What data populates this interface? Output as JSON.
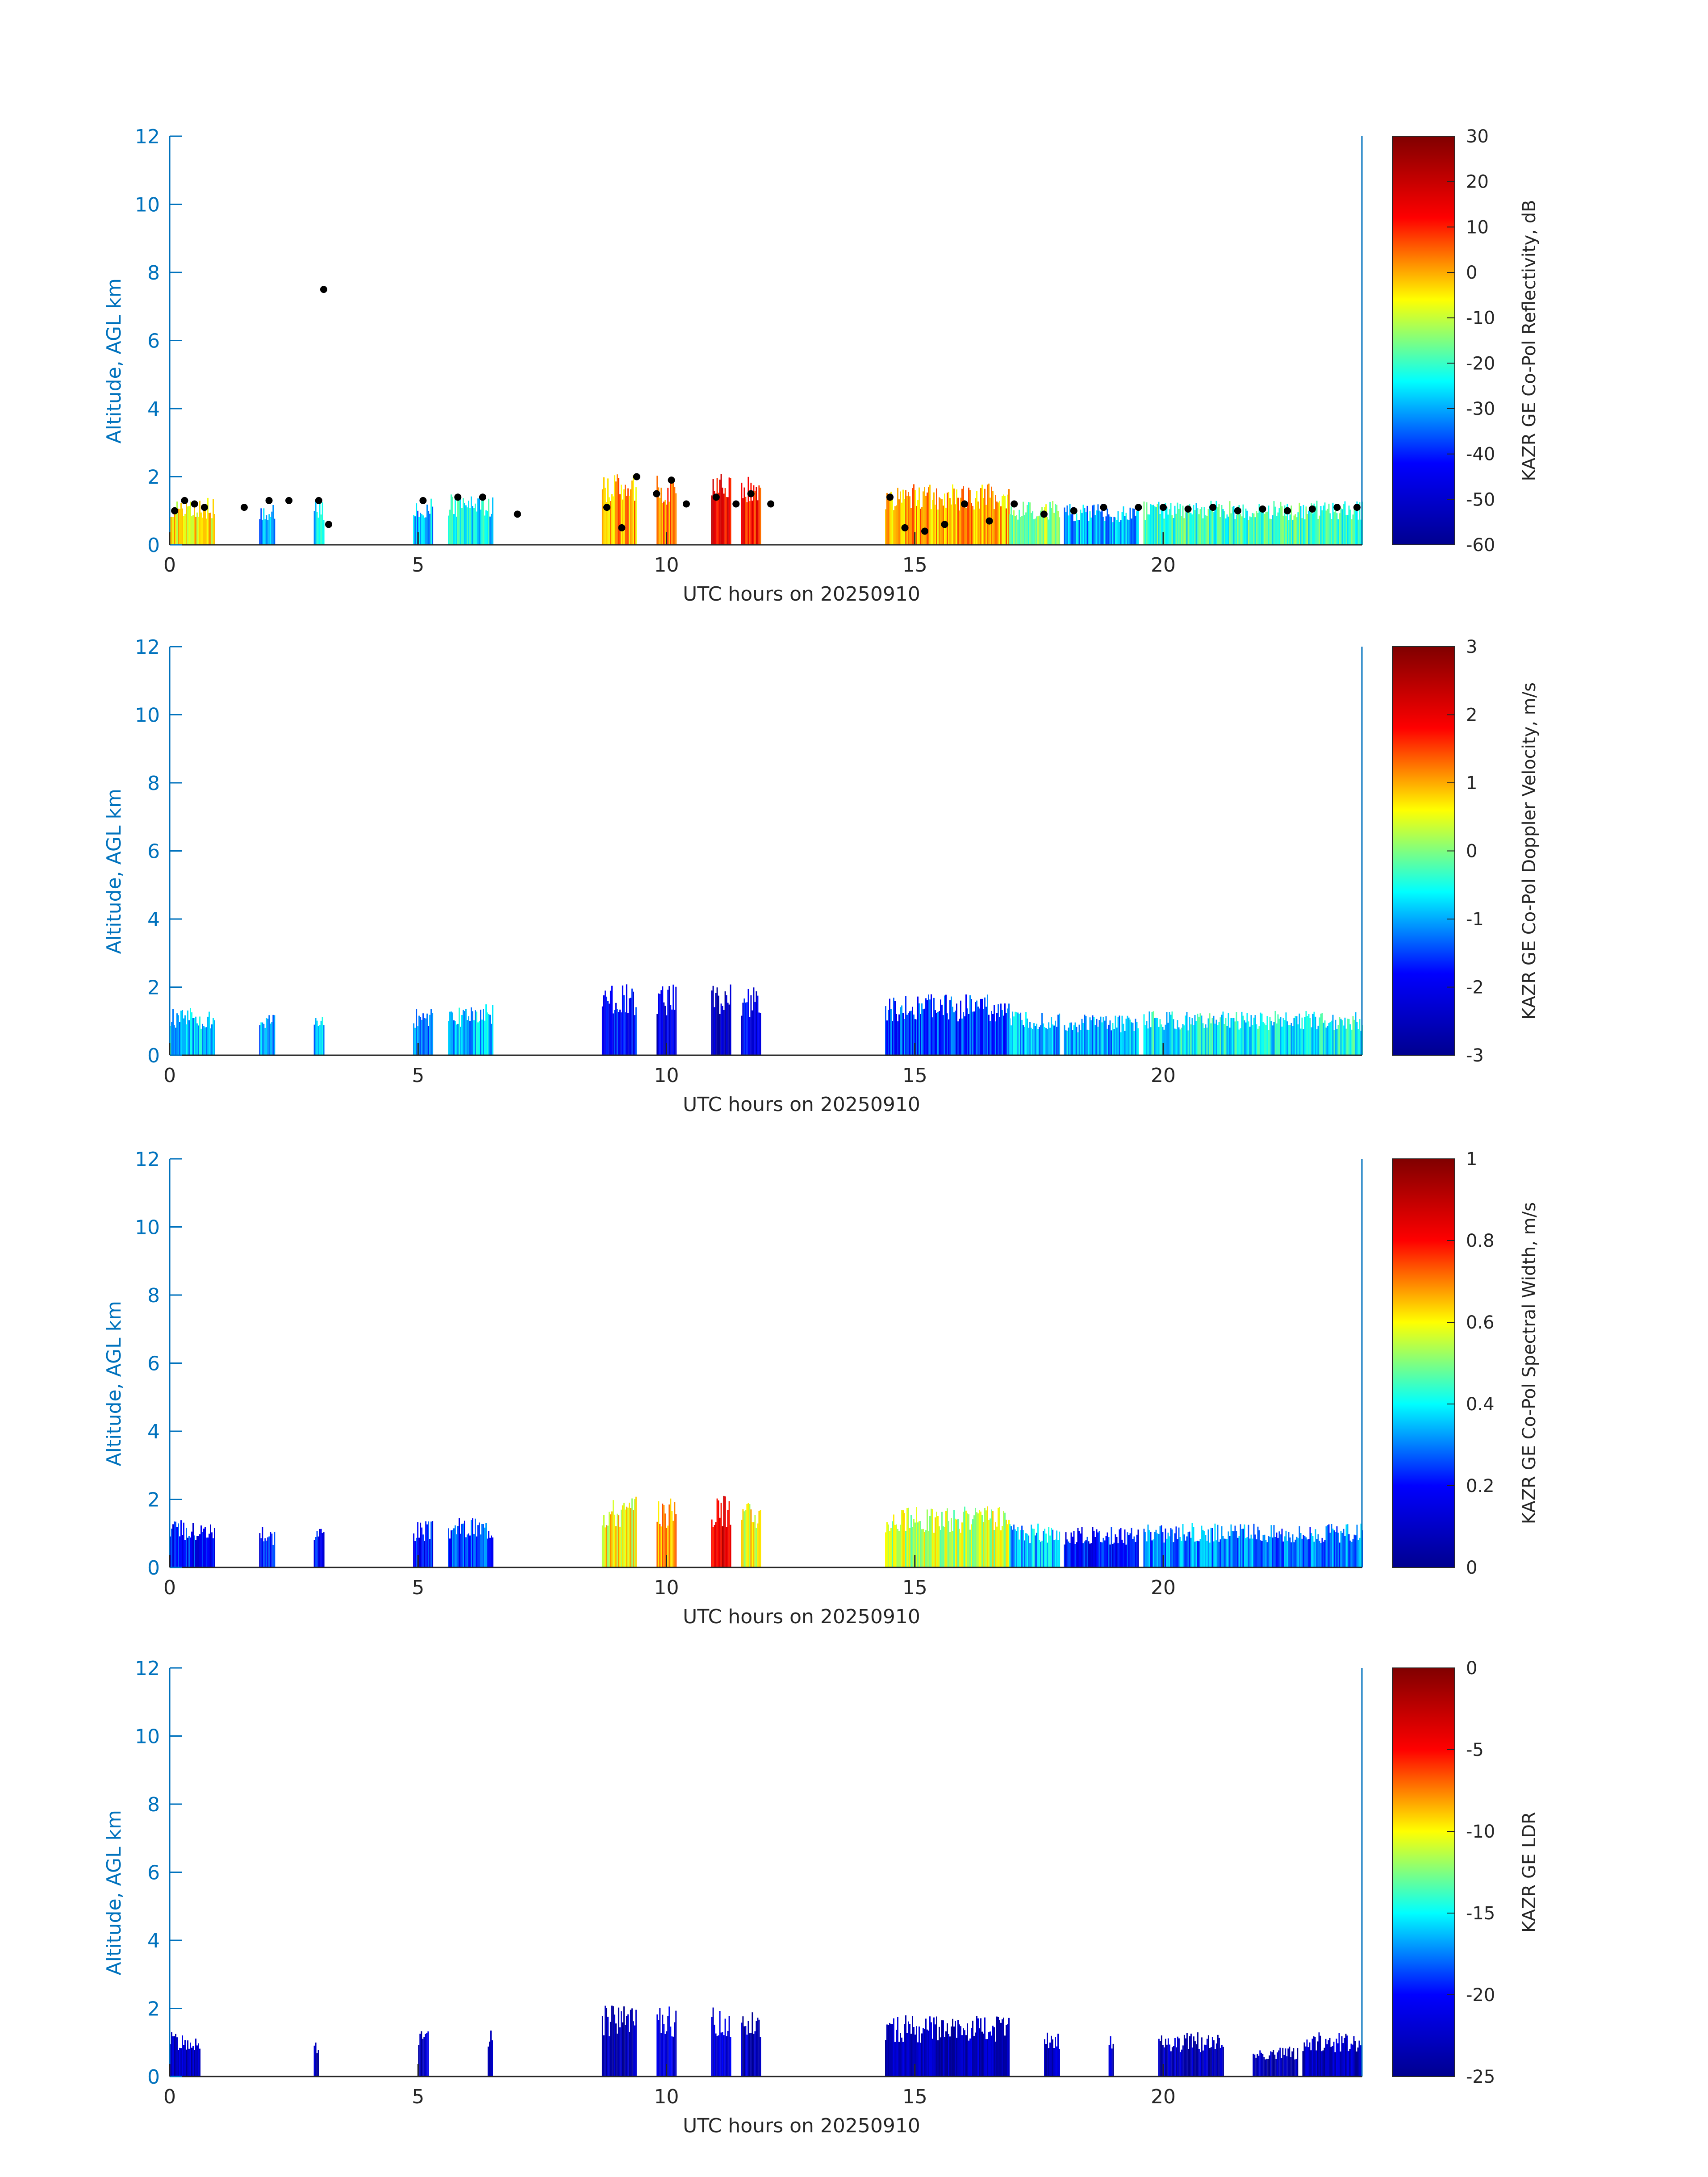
{
  "figure": {
    "date_label": "UTC hours on 20250910",
    "ylabel": "Altitude, AGL km"
  },
  "colors": {
    "axis_blue": "#0072bd",
    "text_dark": "#262626",
    "jet_stops": [
      "#00008f",
      "#0000ff",
      "#00ffff",
      "#ffff00",
      "#ff0000",
      "#800000"
    ]
  },
  "chart_data": [
    {
      "type": "heatmap",
      "title": "",
      "xlabel": "UTC hours on 20250910",
      "ylabel": "Altitude, AGL km",
      "xlim": [
        0,
        24
      ],
      "ylim": [
        0,
        12
      ],
      "xticks": [
        0,
        5,
        10,
        15,
        20
      ],
      "yticks": [
        0,
        2,
        4,
        6,
        8,
        10,
        12
      ],
      "colorbar": {
        "label": "KAZR GE Co-Pol Reflectivity, dB",
        "range": [
          -60,
          30
        ],
        "ticks": [
          30,
          20,
          10,
          0,
          -10,
          -20,
          -30,
          -40,
          -50,
          -60
        ],
        "colormap": "jet"
      },
      "cloud_columns": [
        {
          "t_start": 0.0,
          "t_end": 0.9,
          "top_km": 1.4,
          "value": -5
        },
        {
          "t_start": 1.8,
          "t_end": 2.1,
          "top_km": 1.2,
          "value": -30
        },
        {
          "t_start": 2.9,
          "t_end": 3.1,
          "top_km": 1.3,
          "value": -25
        },
        {
          "t_start": 4.9,
          "t_end": 5.3,
          "top_km": 1.4,
          "value": -30
        },
        {
          "t_start": 5.6,
          "t_end": 6.5,
          "top_km": 1.5,
          "value": -25
        },
        {
          "t_start": 8.7,
          "t_end": 9.4,
          "top_km": 2.1,
          "value": 0
        },
        {
          "t_start": 9.8,
          "t_end": 10.2,
          "top_km": 2.1,
          "value": 5
        },
        {
          "t_start": 10.9,
          "t_end": 11.3,
          "top_km": 2.1,
          "value": 15
        },
        {
          "t_start": 11.5,
          "t_end": 11.9,
          "top_km": 2.0,
          "value": 10
        },
        {
          "t_start": 14.4,
          "t_end": 16.9,
          "top_km": 1.8,
          "value": 0
        },
        {
          "t_start": 16.9,
          "t_end": 17.9,
          "top_km": 1.3,
          "value": -15
        },
        {
          "t_start": 18.0,
          "t_end": 19.5,
          "top_km": 1.2,
          "value": -30
        },
        {
          "t_start": 19.6,
          "t_end": 24.0,
          "top_km": 1.3,
          "value": -20
        }
      ],
      "cloud_base_points": [
        {
          "t": 0.1,
          "h": 1.0
        },
        {
          "t": 0.3,
          "h": 1.3
        },
        {
          "t": 0.5,
          "h": 1.2
        },
        {
          "t": 0.7,
          "h": 1.1
        },
        {
          "t": 1.5,
          "h": 1.1
        },
        {
          "t": 2.0,
          "h": 1.3
        },
        {
          "t": 2.4,
          "h": 1.3
        },
        {
          "t": 3.0,
          "h": 1.3
        },
        {
          "t": 3.1,
          "h": 7.5
        },
        {
          "t": 3.2,
          "h": 0.6
        },
        {
          "t": 5.1,
          "h": 1.3
        },
        {
          "t": 5.8,
          "h": 1.4
        },
        {
          "t": 6.3,
          "h": 1.4
        },
        {
          "t": 7.0,
          "h": 0.9
        },
        {
          "t": 8.8,
          "h": 1.1
        },
        {
          "t": 9.1,
          "h": 0.5
        },
        {
          "t": 9.4,
          "h": 2.0
        },
        {
          "t": 9.8,
          "h": 1.5
        },
        {
          "t": 10.1,
          "h": 1.9
        },
        {
          "t": 10.4,
          "h": 1.2
        },
        {
          "t": 11.0,
          "h": 1.4
        },
        {
          "t": 11.4,
          "h": 1.2
        },
        {
          "t": 11.7,
          "h": 1.5
        },
        {
          "t": 12.1,
          "h": 1.2
        },
        {
          "t": 14.5,
          "h": 1.4
        },
        {
          "t": 14.8,
          "h": 0.5
        },
        {
          "t": 15.2,
          "h": 0.4
        },
        {
          "t": 15.6,
          "h": 0.6
        },
        {
          "t": 16.0,
          "h": 1.2
        },
        {
          "t": 16.5,
          "h": 0.7
        },
        {
          "t": 17.0,
          "h": 1.2
        },
        {
          "t": 17.6,
          "h": 0.9
        },
        {
          "t": 18.2,
          "h": 1.0
        },
        {
          "t": 18.8,
          "h": 1.1
        },
        {
          "t": 19.5,
          "h": 1.1
        },
        {
          "t": 20.0,
          "h": 1.1
        },
        {
          "t": 20.5,
          "h": 1.05
        },
        {
          "t": 21.0,
          "h": 1.1
        },
        {
          "t": 21.5,
          "h": 1.0
        },
        {
          "t": 22.0,
          "h": 1.05
        },
        {
          "t": 22.5,
          "h": 1.0
        },
        {
          "t": 23.0,
          "h": 1.05
        },
        {
          "t": 23.5,
          "h": 1.1
        },
        {
          "t": 23.9,
          "h": 1.1
        }
      ]
    },
    {
      "type": "heatmap",
      "title": "",
      "xlabel": "UTC hours on 20250910",
      "ylabel": "Altitude, AGL km",
      "xlim": [
        0,
        24
      ],
      "ylim": [
        0,
        12
      ],
      "xticks": [
        0,
        5,
        10,
        15,
        20
      ],
      "yticks": [
        0,
        2,
        4,
        6,
        8,
        10,
        12
      ],
      "colorbar": {
        "label": "KAZR GE Co-Pol Doppler Velocity, m/s",
        "range": [
          -3,
          3
        ],
        "ticks": [
          3,
          2,
          1,
          0,
          -1,
          -2,
          -3
        ],
        "colormap": "jet"
      },
      "cloud_columns": [
        {
          "t_start": 0.0,
          "t_end": 0.9,
          "top_km": 1.4,
          "value": -0.9
        },
        {
          "t_start": 1.8,
          "t_end": 2.1,
          "top_km": 1.2,
          "value": -1.0
        },
        {
          "t_start": 2.9,
          "t_end": 3.1,
          "top_km": 1.3,
          "value": -1.0
        },
        {
          "t_start": 4.9,
          "t_end": 5.3,
          "top_km": 1.4,
          "value": -1.2
        },
        {
          "t_start": 5.6,
          "t_end": 6.5,
          "top_km": 1.5,
          "value": -0.9
        },
        {
          "t_start": 8.7,
          "t_end": 9.4,
          "top_km": 2.1,
          "value": -1.8
        },
        {
          "t_start": 9.8,
          "t_end": 10.2,
          "top_km": 2.1,
          "value": -2.2
        },
        {
          "t_start": 10.9,
          "t_end": 11.3,
          "top_km": 2.1,
          "value": -2.5
        },
        {
          "t_start": 11.5,
          "t_end": 11.9,
          "top_km": 2.0,
          "value": -2.0
        },
        {
          "t_start": 14.4,
          "t_end": 16.9,
          "top_km": 1.8,
          "value": -1.5
        },
        {
          "t_start": 16.9,
          "t_end": 17.9,
          "top_km": 1.3,
          "value": -1.0
        },
        {
          "t_start": 18.0,
          "t_end": 19.5,
          "top_km": 1.2,
          "value": -1.0
        },
        {
          "t_start": 19.6,
          "t_end": 24.0,
          "top_km": 1.3,
          "value": -0.6
        }
      ]
    },
    {
      "type": "heatmap",
      "title": "",
      "xlabel": "UTC hours on 20250910",
      "ylabel": "Altitude, AGL km",
      "xlim": [
        0,
        24
      ],
      "ylim": [
        0,
        12
      ],
      "xticks": [
        0,
        5,
        10,
        15,
        20
      ],
      "yticks": [
        0,
        2,
        4,
        6,
        8,
        10,
        12
      ],
      "colorbar": {
        "label": "KAZR GE Co-Pol Spectral Width, m/s",
        "range": [
          0,
          1
        ],
        "ticks": [
          1,
          0.8,
          0.6,
          0.4,
          0.2,
          0
        ],
        "colormap": "jet"
      },
      "cloud_columns": [
        {
          "t_start": 0.0,
          "t_end": 0.9,
          "top_km": 1.4,
          "value": 0.2
        },
        {
          "t_start": 1.8,
          "t_end": 2.1,
          "top_km": 1.2,
          "value": 0.2
        },
        {
          "t_start": 2.9,
          "t_end": 3.1,
          "top_km": 1.3,
          "value": 0.2
        },
        {
          "t_start": 4.9,
          "t_end": 5.3,
          "top_km": 1.4,
          "value": 0.2
        },
        {
          "t_start": 5.6,
          "t_end": 6.5,
          "top_km": 1.5,
          "value": 0.25
        },
        {
          "t_start": 8.7,
          "t_end": 9.4,
          "top_km": 2.1,
          "value": 0.6
        },
        {
          "t_start": 9.8,
          "t_end": 10.2,
          "top_km": 2.1,
          "value": 0.7
        },
        {
          "t_start": 10.9,
          "t_end": 11.3,
          "top_km": 2.1,
          "value": 0.85
        },
        {
          "t_start": 11.5,
          "t_end": 11.9,
          "top_km": 2.0,
          "value": 0.6
        },
        {
          "t_start": 14.4,
          "t_end": 16.9,
          "top_km": 1.8,
          "value": 0.55
        },
        {
          "t_start": 16.9,
          "t_end": 17.9,
          "top_km": 1.3,
          "value": 0.35
        },
        {
          "t_start": 18.0,
          "t_end": 19.5,
          "top_km": 1.2,
          "value": 0.2
        },
        {
          "t_start": 19.6,
          "t_end": 24.0,
          "top_km": 1.3,
          "value": 0.3
        }
      ]
    },
    {
      "type": "heatmap",
      "title": "",
      "xlabel": "UTC hours on 20250910",
      "ylabel": "Altitude, AGL km",
      "xlim": [
        0,
        24
      ],
      "ylim": [
        0,
        12
      ],
      "xticks": [
        0,
        5,
        10,
        15,
        20
      ],
      "yticks": [
        0,
        2,
        4,
        6,
        8,
        10,
        12
      ],
      "colorbar": {
        "label": "KAZR GE LDR",
        "range": [
          -25,
          0
        ],
        "ticks": [
          0,
          -5,
          -10,
          -15,
          -20,
          -25
        ],
        "colormap": "jet"
      },
      "cloud_columns": [
        {
          "t_start": 0.0,
          "t_end": 0.6,
          "top_km": 1.4,
          "value": -23
        },
        {
          "t_start": 2.9,
          "t_end": 3.0,
          "top_km": 1.2,
          "value": -23
        },
        {
          "t_start": 5.0,
          "t_end": 5.2,
          "top_km": 1.4,
          "value": -23
        },
        {
          "t_start": 6.4,
          "t_end": 6.5,
          "top_km": 1.4,
          "value": -23
        },
        {
          "t_start": 8.7,
          "t_end": 9.4,
          "top_km": 2.1,
          "value": -23
        },
        {
          "t_start": 9.8,
          "t_end": 10.2,
          "top_km": 2.1,
          "value": -22
        },
        {
          "t_start": 10.9,
          "t_end": 11.3,
          "top_km": 2.1,
          "value": -21
        },
        {
          "t_start": 11.5,
          "t_end": 11.9,
          "top_km": 2.0,
          "value": -23
        },
        {
          "t_start": 14.4,
          "t_end": 16.9,
          "top_km": 1.8,
          "value": -23
        },
        {
          "t_start": 17.6,
          "t_end": 17.9,
          "top_km": 1.3,
          "value": -23
        },
        {
          "t_start": 18.9,
          "t_end": 19.0,
          "top_km": 1.2,
          "value": -23
        },
        {
          "t_start": 19.9,
          "t_end": 21.2,
          "top_km": 1.3,
          "value": -23
        },
        {
          "t_start": 21.8,
          "t_end": 22.7,
          "top_km": 0.9,
          "value": -23
        },
        {
          "t_start": 22.8,
          "t_end": 24.0,
          "top_km": 1.3,
          "value": -23
        }
      ]
    }
  ]
}
